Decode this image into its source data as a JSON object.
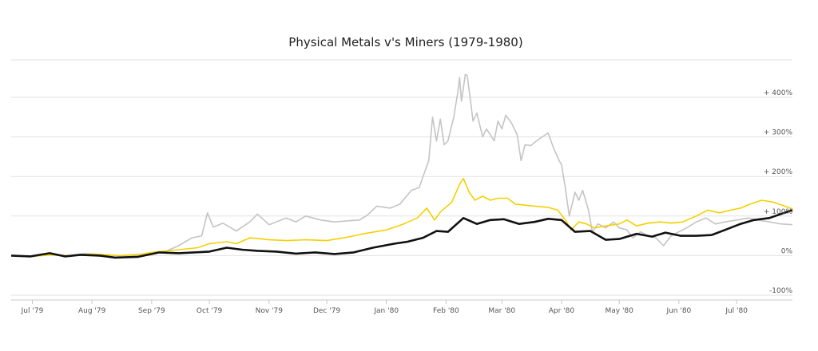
{
  "chart_data": {
    "type": "line",
    "title": "Physical Metals v's Miners (1979-1980)",
    "xlabel": "",
    "ylabel": "",
    "grid": true,
    "legend": "none",
    "x_range": [
      "1979-06-20",
      "1980-07-30"
    ],
    "ylim": [
      -100,
      500
    ],
    "x_ticks": [
      {
        "date": "1979-07-01",
        "label": "Jul '79"
      },
      {
        "date": "1979-08-01",
        "label": "Aug '79"
      },
      {
        "date": "1979-09-01",
        "label": "Sep '79"
      },
      {
        "date": "1979-10-01",
        "label": "Oct '79"
      },
      {
        "date": "1979-11-01",
        "label": "Nov '79"
      },
      {
        "date": "1979-12-01",
        "label": "Dec '79"
      },
      {
        "date": "1980-01-01",
        "label": "Jan '80"
      },
      {
        "date": "1980-02-01",
        "label": "Feb '80"
      },
      {
        "date": "1980-03-01",
        "label": "Mar '80"
      },
      {
        "date": "1980-04-01",
        "label": "Apr '80"
      },
      {
        "date": "1980-05-01",
        "label": "May '80"
      },
      {
        "date": "1980-06-01",
        "label": "Jun '80"
      },
      {
        "date": "1980-07-01",
        "label": "Jul '80"
      }
    ],
    "y_ticks": [
      {
        "value": 400,
        "label": "+ 400%"
      },
      {
        "value": 300,
        "label": "+ 300%"
      },
      {
        "value": 200,
        "label": "+ 200%"
      },
      {
        "value": 100,
        "label": "+ 100%"
      },
      {
        "value": 0,
        "label": "0%"
      },
      {
        "value": -100,
        "label": "-100%"
      }
    ],
    "series": [
      {
        "color": "#c4c4c4",
        "points": [
          [
            "1979-06-20",
            0
          ],
          [
            "1979-06-30",
            -3
          ],
          [
            "1979-07-10",
            2
          ],
          [
            "1979-07-20",
            0
          ],
          [
            "1979-07-28",
            5
          ],
          [
            "1979-08-05",
            3
          ],
          [
            "1979-08-15",
            0
          ],
          [
            "1979-08-25",
            3
          ],
          [
            "1979-09-01",
            6
          ],
          [
            "1979-09-08",
            10
          ],
          [
            "1979-09-15",
            25
          ],
          [
            "1979-09-22",
            45
          ],
          [
            "1979-09-27",
            50
          ],
          [
            "1979-09-30",
            108
          ],
          [
            "1979-10-03",
            72
          ],
          [
            "1979-10-08",
            82
          ],
          [
            "1979-10-15",
            62
          ],
          [
            "1979-10-22",
            85
          ],
          [
            "1979-10-26",
            105
          ],
          [
            "1979-11-01",
            78
          ],
          [
            "1979-11-10",
            95
          ],
          [
            "1979-11-15",
            85
          ],
          [
            "1979-11-20",
            100
          ],
          [
            "1979-11-28",
            90
          ],
          [
            "1979-12-05",
            85
          ],
          [
            "1979-12-12",
            88
          ],
          [
            "1979-12-18",
            90
          ],
          [
            "1979-12-22",
            102
          ],
          [
            "1979-12-27",
            125
          ],
          [
            "1980-01-03",
            120
          ],
          [
            "1980-01-08",
            130
          ],
          [
            "1980-01-14",
            165
          ],
          [
            "1980-01-18",
            172
          ],
          [
            "1980-01-23",
            240
          ],
          [
            "1980-01-25",
            350
          ],
          [
            "1980-01-27",
            290
          ],
          [
            "1980-01-29",
            345
          ],
          [
            "1980-01-31",
            280
          ],
          [
            "1980-02-02",
            290
          ],
          [
            "1980-02-05",
            350
          ],
          [
            "1980-02-07",
            410
          ],
          [
            "1980-02-08",
            450
          ],
          [
            "1980-02-09",
            390
          ],
          [
            "1980-02-11",
            458
          ],
          [
            "1980-02-12",
            455
          ],
          [
            "1980-02-14",
            380
          ],
          [
            "1980-02-15",
            340
          ],
          [
            "1980-02-17",
            360
          ],
          [
            "1980-02-20",
            300
          ],
          [
            "1980-02-22",
            320
          ],
          [
            "1980-02-24",
            305
          ],
          [
            "1980-02-26",
            290
          ],
          [
            "1980-02-28",
            340
          ],
          [
            "1980-03-01",
            320
          ],
          [
            "1980-03-03",
            355
          ],
          [
            "1980-03-06",
            335
          ],
          [
            "1980-03-09",
            305
          ],
          [
            "1980-03-11",
            240
          ],
          [
            "1980-03-13",
            280
          ],
          [
            "1980-03-16",
            278
          ],
          [
            "1980-03-19",
            290
          ],
          [
            "1980-03-22",
            300
          ],
          [
            "1980-03-25",
            310
          ],
          [
            "1980-03-28",
            270
          ],
          [
            "1980-03-31",
            238
          ],
          [
            "1980-04-01",
            230
          ],
          [
            "1980-04-03",
            170
          ],
          [
            "1980-04-05",
            100
          ],
          [
            "1980-04-08",
            160
          ],
          [
            "1980-04-10",
            140
          ],
          [
            "1980-04-12",
            165
          ],
          [
            "1980-04-15",
            115
          ],
          [
            "1980-04-17",
            60
          ],
          [
            "1980-04-20",
            80
          ],
          [
            "1980-04-24",
            70
          ],
          [
            "1980-04-28",
            85
          ],
          [
            "1980-05-01",
            70
          ],
          [
            "1980-05-05",
            65
          ],
          [
            "1980-05-08",
            45
          ],
          [
            "1980-05-12",
            60
          ],
          [
            "1980-05-16",
            50
          ],
          [
            "1980-05-20",
            45
          ],
          [
            "1980-05-24",
            25
          ],
          [
            "1980-05-28",
            50
          ],
          [
            "1980-06-01",
            60
          ],
          [
            "1980-06-05",
            70
          ],
          [
            "1980-06-10",
            85
          ],
          [
            "1980-06-15",
            95
          ],
          [
            "1980-06-20",
            80
          ],
          [
            "1980-06-25",
            85
          ],
          [
            "1980-07-01",
            90
          ],
          [
            "1980-07-07",
            95
          ],
          [
            "1980-07-12",
            90
          ],
          [
            "1980-07-18",
            85
          ],
          [
            "1980-07-24",
            80
          ],
          [
            "1980-07-30",
            78
          ]
        ]
      },
      {
        "color": "#f5d000",
        "points": [
          [
            "1979-06-20",
            0
          ],
          [
            "1979-06-30",
            -2
          ],
          [
            "1979-07-10",
            2
          ],
          [
            "1979-07-20",
            0
          ],
          [
            "1979-08-01",
            4
          ],
          [
            "1979-08-15",
            0
          ],
          [
            "1979-08-25",
            2
          ],
          [
            "1979-09-01",
            8
          ],
          [
            "1979-09-15",
            15
          ],
          [
            "1979-09-25",
            20
          ],
          [
            "1979-10-01",
            30
          ],
          [
            "1979-10-10",
            35
          ],
          [
            "1979-10-15",
            30
          ],
          [
            "1979-10-22",
            45
          ],
          [
            "1979-11-01",
            40
          ],
          [
            "1979-11-10",
            38
          ],
          [
            "1979-11-20",
            40
          ],
          [
            "1979-12-01",
            38
          ],
          [
            "1979-12-10",
            45
          ],
          [
            "1979-12-20",
            55
          ],
          [
            "1980-01-01",
            65
          ],
          [
            "1980-01-10",
            80
          ],
          [
            "1980-01-17",
            95
          ],
          [
            "1980-01-22",
            120
          ],
          [
            "1980-01-26",
            90
          ],
          [
            "1980-01-29",
            110
          ],
          [
            "1980-02-04",
            135
          ],
          [
            "1980-02-08",
            180
          ],
          [
            "1980-02-10",
            195
          ],
          [
            "1980-02-13",
            160
          ],
          [
            "1980-02-16",
            140
          ],
          [
            "1980-02-20",
            150
          ],
          [
            "1980-02-24",
            140
          ],
          [
            "1980-02-28",
            145
          ],
          [
            "1980-03-04",
            145
          ],
          [
            "1980-03-08",
            130
          ],
          [
            "1980-03-12",
            128
          ],
          [
            "1980-03-18",
            125
          ],
          [
            "1980-03-25",
            122
          ],
          [
            "1980-03-30",
            115
          ],
          [
            "1980-04-03",
            90
          ],
          [
            "1980-04-06",
            65
          ],
          [
            "1980-04-10",
            85
          ],
          [
            "1980-04-14",
            80
          ],
          [
            "1980-04-18",
            70
          ],
          [
            "1980-04-24",
            75
          ],
          [
            "1980-05-01",
            80
          ],
          [
            "1980-05-05",
            90
          ],
          [
            "1980-05-10",
            75
          ],
          [
            "1980-05-16",
            82
          ],
          [
            "1980-05-22",
            85
          ],
          [
            "1980-05-28",
            82
          ],
          [
            "1980-06-03",
            85
          ],
          [
            "1980-06-10",
            100
          ],
          [
            "1980-06-16",
            115
          ],
          [
            "1980-06-22",
            108
          ],
          [
            "1980-06-28",
            115
          ],
          [
            "1980-07-03",
            120
          ],
          [
            "1980-07-08",
            130
          ],
          [
            "1980-07-14",
            140
          ],
          [
            "1980-07-20",
            135
          ],
          [
            "1980-07-26",
            125
          ],
          [
            "1980-07-30",
            118
          ]
        ]
      },
      {
        "color": "#111111",
        "points": [
          [
            "1979-06-20",
            0
          ],
          [
            "1979-06-30",
            -2
          ],
          [
            "1979-07-10",
            6
          ],
          [
            "1979-07-18",
            -2
          ],
          [
            "1979-07-26",
            2
          ],
          [
            "1979-08-05",
            0
          ],
          [
            "1979-08-13",
            -5
          ],
          [
            "1979-08-25",
            -3
          ],
          [
            "1979-09-05",
            8
          ],
          [
            "1979-09-15",
            6
          ],
          [
            "1979-10-01",
            10
          ],
          [
            "1979-10-10",
            20
          ],
          [
            "1979-10-18",
            15
          ],
          [
            "1979-10-26",
            12
          ],
          [
            "1979-11-05",
            10
          ],
          [
            "1979-11-15",
            5
          ],
          [
            "1979-11-25",
            8
          ],
          [
            "1979-12-05",
            4
          ],
          [
            "1979-12-15",
            8
          ],
          [
            "1979-12-25",
            20
          ],
          [
            "1980-01-05",
            30
          ],
          [
            "1980-01-12",
            35
          ],
          [
            "1980-01-20",
            45
          ],
          [
            "1980-01-27",
            62
          ],
          [
            "1980-02-02",
            60
          ],
          [
            "1980-02-10",
            95
          ],
          [
            "1980-02-17",
            80
          ],
          [
            "1980-02-24",
            90
          ],
          [
            "1980-03-02",
            92
          ],
          [
            "1980-03-10",
            80
          ],
          [
            "1980-03-18",
            85
          ],
          [
            "1980-03-25",
            93
          ],
          [
            "1980-04-01",
            90
          ],
          [
            "1980-04-08",
            60
          ],
          [
            "1980-04-16",
            62
          ],
          [
            "1980-04-24",
            40
          ],
          [
            "1980-05-01",
            42
          ],
          [
            "1980-05-10",
            55
          ],
          [
            "1980-05-18",
            48
          ],
          [
            "1980-05-25",
            58
          ],
          [
            "1980-06-02",
            50
          ],
          [
            "1980-06-10",
            50
          ],
          [
            "1980-06-18",
            52
          ],
          [
            "1980-06-25",
            65
          ],
          [
            "1980-07-03",
            80
          ],
          [
            "1980-07-10",
            90
          ],
          [
            "1980-07-18",
            95
          ],
          [
            "1980-07-24",
            105
          ],
          [
            "1980-07-30",
            115
          ]
        ]
      }
    ]
  }
}
